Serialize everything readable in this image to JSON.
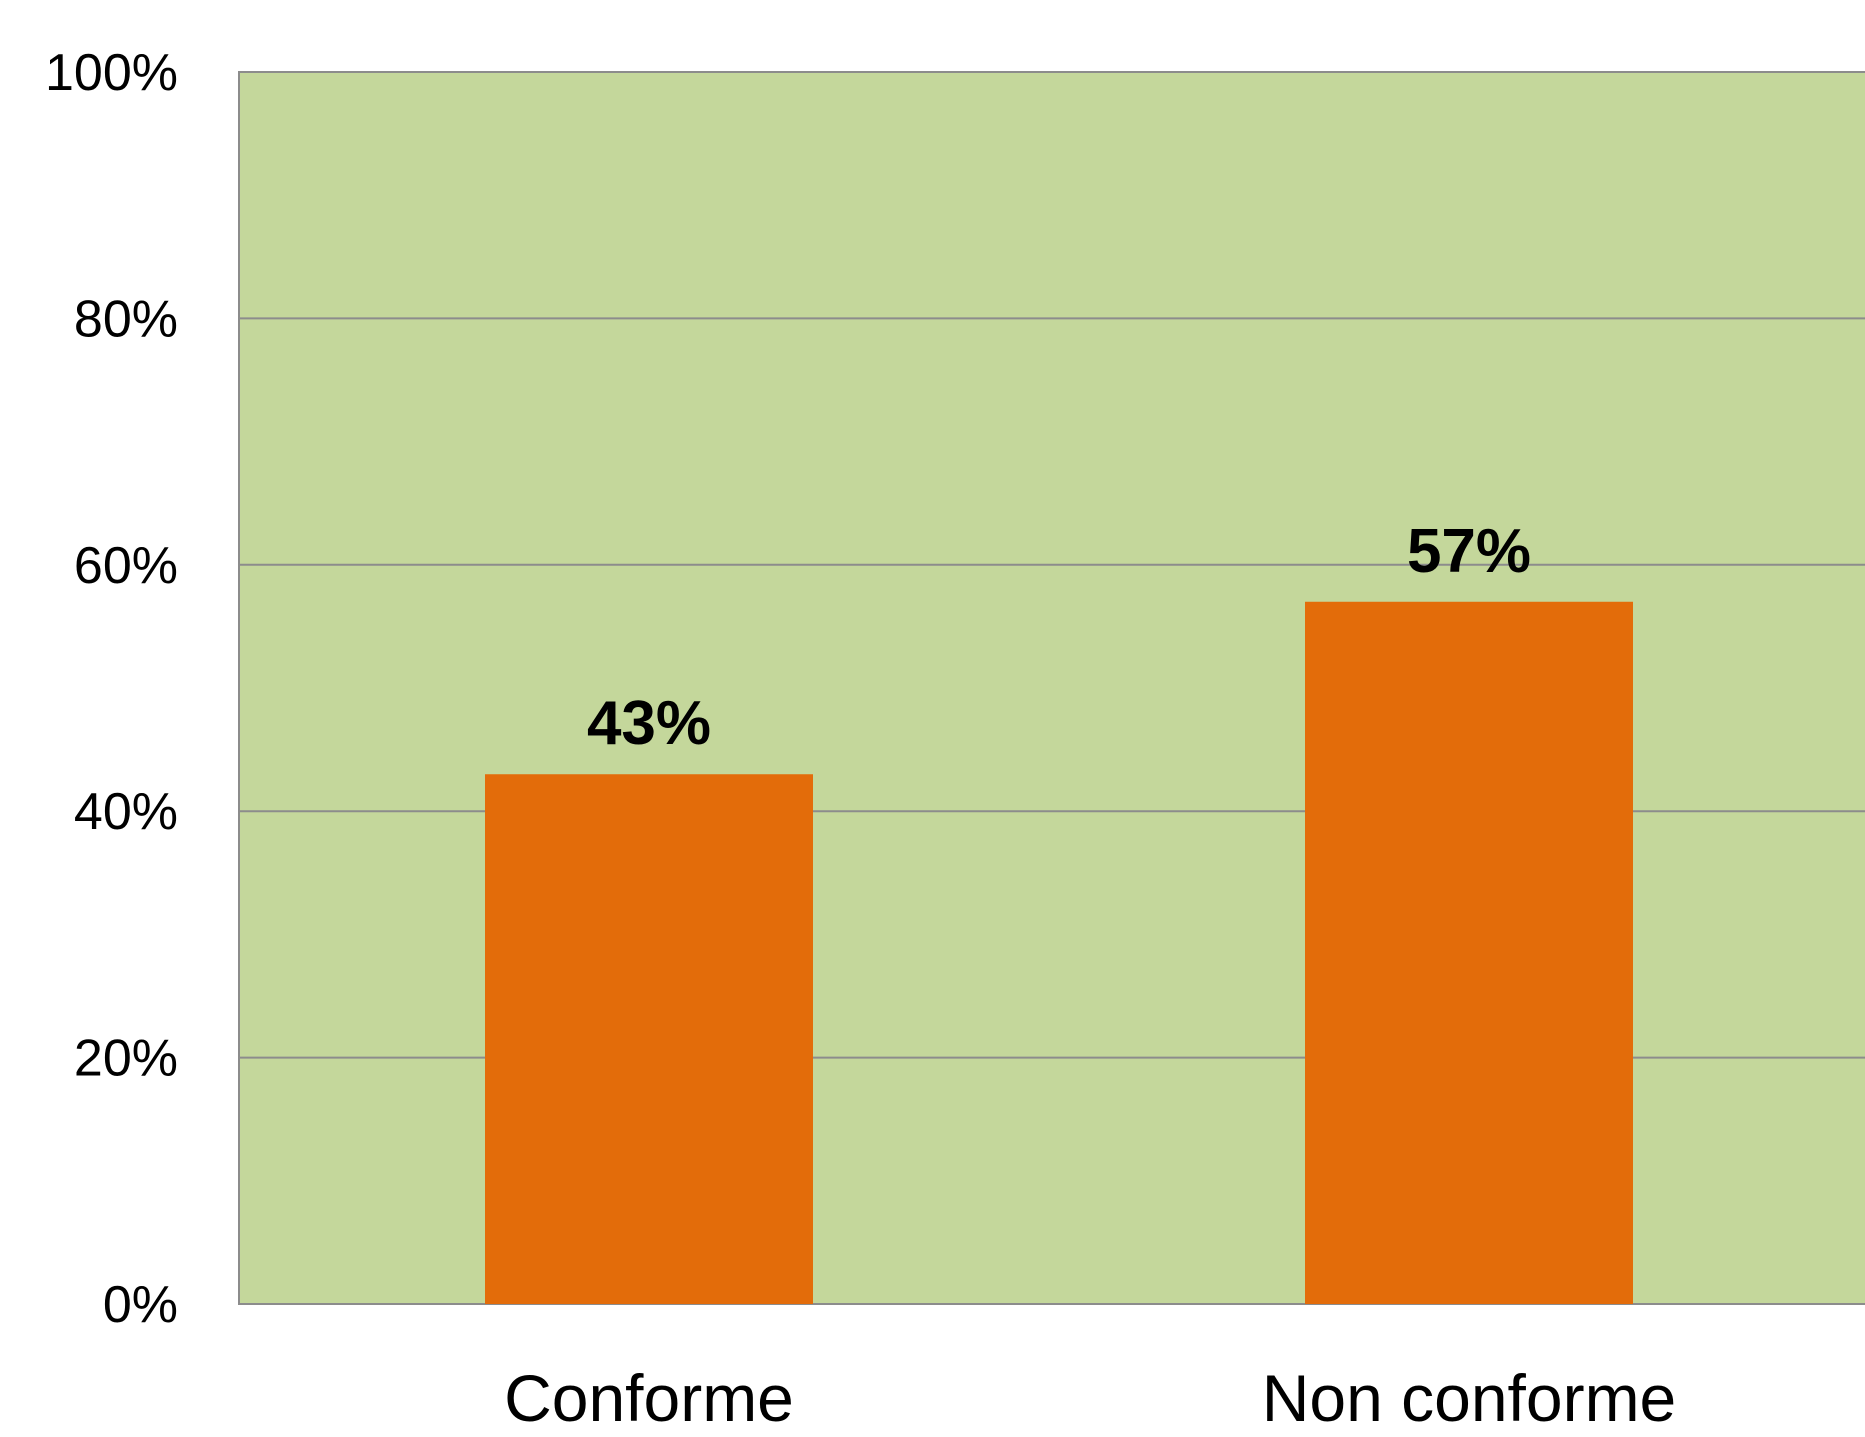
{
  "chart_data": {
    "type": "bar",
    "title": "",
    "xlabel": "",
    "ylabel": "",
    "categories": [
      "Conforme",
      "Non conforme"
    ],
    "values": [
      43,
      57
    ],
    "data_labels": [
      "43%",
      "57%"
    ],
    "ylim": [
      0,
      100
    ],
    "yticks": [
      0,
      20,
      40,
      60,
      80,
      100
    ],
    "ytick_labels": [
      "0%",
      "20%",
      "40%",
      "60%",
      "80%",
      "100%"
    ],
    "grid": true,
    "legend": "none",
    "colors": {
      "bar": "#E36C0A",
      "plot_background": "#C4D79B",
      "gridline": "#8C8C8C",
      "text": "#000000"
    }
  }
}
